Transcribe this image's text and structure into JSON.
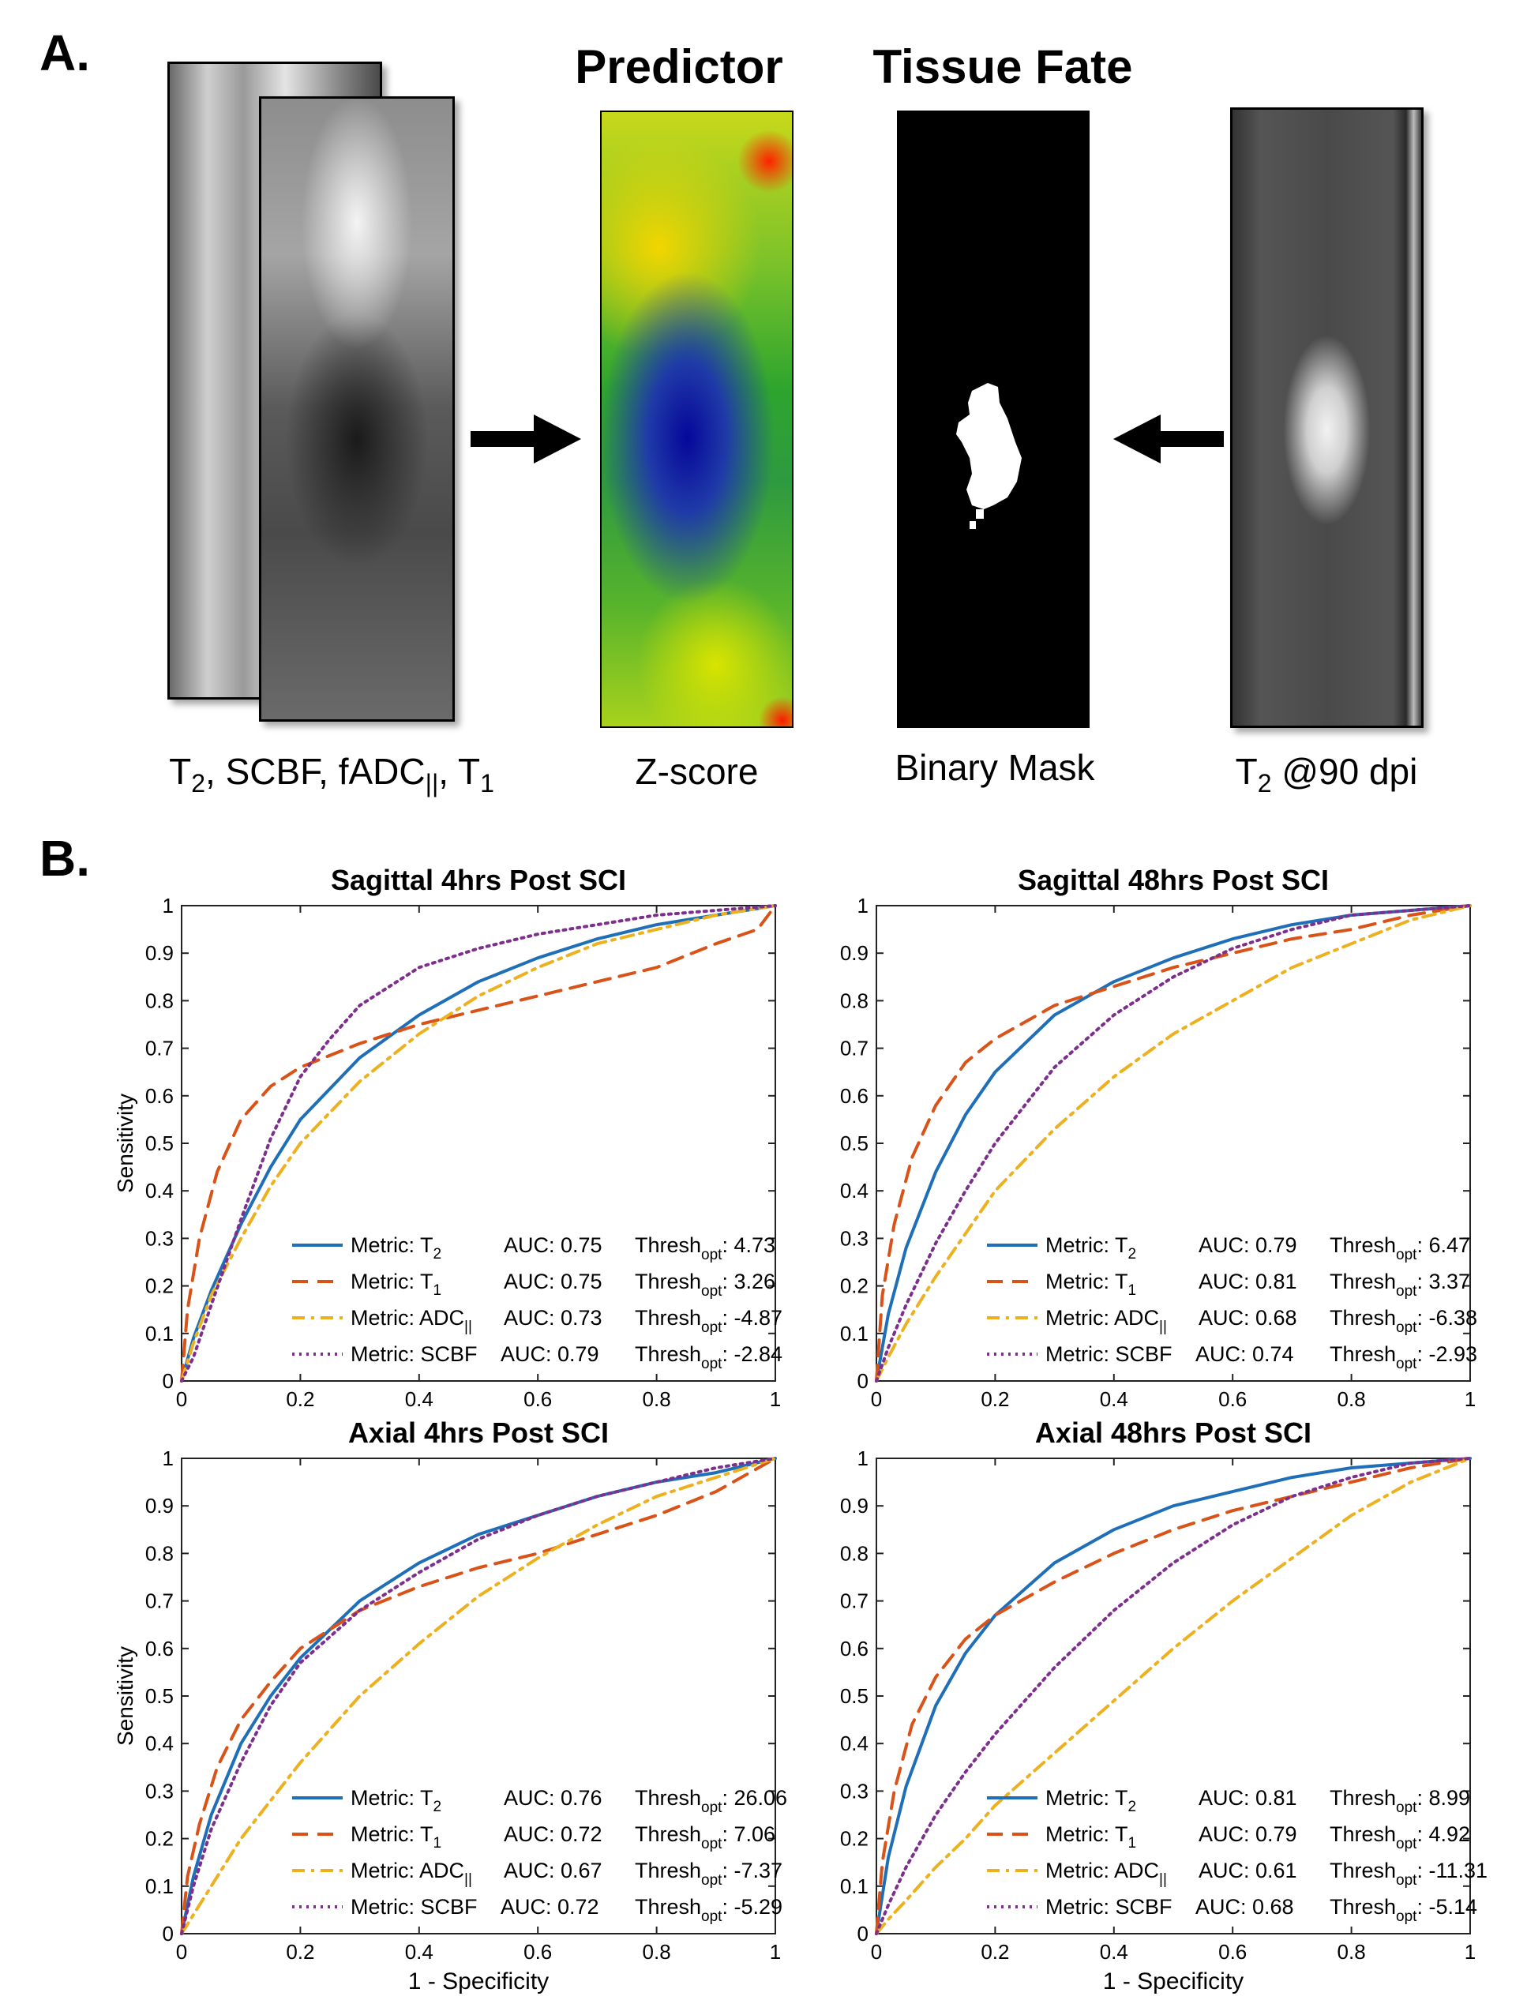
{
  "panel_a": {
    "label": "A.",
    "heading_predictor": "Predictor",
    "heading_tissue_fate": "Tissue Fate",
    "captions": {
      "inputs": {
        "pre": "T",
        "sub": "2",
        "mid": ", SCBF, fADC",
        "sub2": "||",
        "post": ", T",
        "sub3": "1"
      },
      "zscore": "Z-score",
      "mask": "Binary Mask",
      "t2_90": {
        "pre": "T",
        "sub": "2",
        "post": " @90 dpi"
      }
    }
  },
  "panel_b": {
    "label": "B."
  },
  "colors": {
    "T2": "#1f6fb8",
    "T1": "#d95319",
    "ADC": "#edb120",
    "SCBF": "#7e2f8e"
  },
  "chart_data": [
    {
      "type": "line",
      "title": "Sagittal 4hrs Post SCI",
      "xlabel": "",
      "ylabel": "Sensitivity",
      "xlim": [
        0,
        1
      ],
      "ylim": [
        0,
        1
      ],
      "xticks": [
        "0",
        "0.2",
        "0.4",
        "0.6",
        "0.8",
        "1"
      ],
      "yticks": [
        "0",
        "0.1",
        "0.2",
        "0.3",
        "0.4",
        "0.5",
        "0.6",
        "0.7",
        "0.8",
        "0.9",
        "1"
      ],
      "series": [
        {
          "name": "Metric: T2",
          "metric": "T",
          "metric_sub": "2",
          "auc": "AUC: 0.75",
          "thresh": "4.73",
          "style": "solid",
          "x": [
            0,
            0.02,
            0.05,
            0.1,
            0.15,
            0.2,
            0.3,
            0.4,
            0.5,
            0.6,
            0.7,
            0.8,
            0.9,
            1
          ],
          "y": [
            0,
            0.09,
            0.19,
            0.33,
            0.45,
            0.55,
            0.68,
            0.77,
            0.84,
            0.89,
            0.93,
            0.96,
            0.98,
            1
          ]
        },
        {
          "name": "Metric: T1",
          "metric": "T",
          "metric_sub": "1",
          "auc": "AUC: 0.75",
          "thresh": "3.26",
          "style": "dashed",
          "x": [
            0,
            0.01,
            0.03,
            0.06,
            0.1,
            0.15,
            0.2,
            0.3,
            0.4,
            0.5,
            0.6,
            0.7,
            0.8,
            0.9,
            0.97,
            1
          ],
          "y": [
            0,
            0.15,
            0.3,
            0.44,
            0.55,
            0.62,
            0.66,
            0.71,
            0.75,
            0.78,
            0.81,
            0.84,
            0.87,
            0.92,
            0.95,
            1
          ]
        },
        {
          "name": "Metric: ADC||",
          "metric": "ADC",
          "metric_sub": "||",
          "auc": "AUC: 0.73",
          "thresh": "-4.87",
          "style": "dashdot",
          "x": [
            0,
            0.02,
            0.05,
            0.1,
            0.15,
            0.2,
            0.3,
            0.4,
            0.5,
            0.6,
            0.7,
            0.8,
            0.9,
            1
          ],
          "y": [
            0,
            0.08,
            0.18,
            0.3,
            0.41,
            0.5,
            0.63,
            0.73,
            0.81,
            0.87,
            0.92,
            0.95,
            0.98,
            1
          ]
        },
        {
          "name": "Metric: SCBF",
          "metric": "SCBF",
          "metric_sub": "",
          "auc": "AUC: 0.79",
          "thresh": "-2.84",
          "style": "dotted",
          "x": [
            0,
            0.02,
            0.05,
            0.1,
            0.15,
            0.2,
            0.25,
            0.3,
            0.4,
            0.5,
            0.6,
            0.7,
            0.8,
            0.9,
            1
          ],
          "y": [
            0,
            0.05,
            0.16,
            0.34,
            0.51,
            0.64,
            0.72,
            0.79,
            0.87,
            0.91,
            0.94,
            0.96,
            0.98,
            0.99,
            1
          ]
        }
      ]
    },
    {
      "type": "line",
      "title": "Sagittal 48hrs Post SCI",
      "xlabel": "",
      "ylabel": "",
      "xlim": [
        0,
        1
      ],
      "ylim": [
        0,
        1
      ],
      "xticks": [
        "0",
        "0.2",
        "0.4",
        "0.6",
        "0.8",
        "1"
      ],
      "yticks": [
        "0",
        "0.1",
        "0.2",
        "0.3",
        "0.4",
        "0.5",
        "0.6",
        "0.7",
        "0.8",
        "0.9",
        "1"
      ],
      "series": [
        {
          "name": "Metric: T2",
          "metric": "T",
          "metric_sub": "2",
          "auc": "AUC: 0.79",
          "thresh": "6.47",
          "style": "solid",
          "x": [
            0,
            0.02,
            0.05,
            0.1,
            0.15,
            0.2,
            0.3,
            0.4,
            0.5,
            0.6,
            0.7,
            0.8,
            0.9,
            1
          ],
          "y": [
            0,
            0.14,
            0.28,
            0.44,
            0.56,
            0.65,
            0.77,
            0.84,
            0.89,
            0.93,
            0.96,
            0.98,
            0.99,
            1
          ]
        },
        {
          "name": "Metric: T1",
          "metric": "T",
          "metric_sub": "1",
          "auc": "AUC: 0.81",
          "thresh": "3.37",
          "style": "dashed",
          "x": [
            0,
            0.01,
            0.03,
            0.06,
            0.1,
            0.15,
            0.2,
            0.3,
            0.4,
            0.5,
            0.6,
            0.7,
            0.8,
            0.9,
            1
          ],
          "y": [
            0,
            0.18,
            0.33,
            0.47,
            0.58,
            0.67,
            0.72,
            0.79,
            0.83,
            0.87,
            0.9,
            0.93,
            0.95,
            0.98,
            1
          ]
        },
        {
          "name": "Metric: ADC||",
          "metric": "ADC",
          "metric_sub": "||",
          "auc": "AUC: 0.68",
          "thresh": "-6.38",
          "style": "dashdot",
          "x": [
            0,
            0.02,
            0.05,
            0.1,
            0.15,
            0.2,
            0.3,
            0.4,
            0.5,
            0.6,
            0.7,
            0.8,
            0.9,
            1
          ],
          "y": [
            0,
            0.05,
            0.12,
            0.22,
            0.31,
            0.4,
            0.53,
            0.64,
            0.73,
            0.8,
            0.87,
            0.92,
            0.97,
            1
          ]
        },
        {
          "name": "Metric: SCBF",
          "metric": "SCBF",
          "metric_sub": "",
          "auc": "AUC: 0.74",
          "thresh": "-2.93",
          "style": "dotted",
          "x": [
            0,
            0.02,
            0.05,
            0.1,
            0.15,
            0.2,
            0.3,
            0.4,
            0.5,
            0.6,
            0.7,
            0.8,
            0.9,
            1
          ],
          "y": [
            0,
            0.07,
            0.16,
            0.29,
            0.4,
            0.5,
            0.66,
            0.77,
            0.85,
            0.91,
            0.95,
            0.98,
            0.99,
            1
          ]
        }
      ]
    },
    {
      "type": "line",
      "title": "Axial 4hrs Post SCI",
      "xlabel": "1 - Specificity",
      "ylabel": "Sensitivity",
      "xlim": [
        0,
        1
      ],
      "ylim": [
        0,
        1
      ],
      "xticks": [
        "0",
        "0.2",
        "0.4",
        "0.6",
        "0.8",
        "1"
      ],
      "yticks": [
        "0",
        "0.1",
        "0.2",
        "0.3",
        "0.4",
        "0.5",
        "0.6",
        "0.7",
        "0.8",
        "0.9",
        "1"
      ],
      "series": [
        {
          "name": "Metric: T2",
          "metric": "T",
          "metric_sub": "2",
          "auc": "AUC: 0.76",
          "thresh": "26.06",
          "style": "solid",
          "x": [
            0,
            0.02,
            0.05,
            0.1,
            0.15,
            0.2,
            0.3,
            0.4,
            0.5,
            0.6,
            0.7,
            0.8,
            0.9,
            1
          ],
          "y": [
            0,
            0.12,
            0.25,
            0.4,
            0.5,
            0.58,
            0.7,
            0.78,
            0.84,
            0.88,
            0.92,
            0.95,
            0.97,
            1
          ]
        },
        {
          "name": "Metric: T1",
          "metric": "T",
          "metric_sub": "1",
          "auc": "AUC: 0.72",
          "thresh": "7.06",
          "style": "dashed",
          "x": [
            0,
            0.01,
            0.03,
            0.06,
            0.1,
            0.15,
            0.2,
            0.3,
            0.4,
            0.5,
            0.6,
            0.7,
            0.8,
            0.9,
            1
          ],
          "y": [
            0,
            0.12,
            0.23,
            0.35,
            0.45,
            0.53,
            0.6,
            0.68,
            0.73,
            0.77,
            0.8,
            0.84,
            0.88,
            0.93,
            1
          ]
        },
        {
          "name": "Metric: ADC||",
          "metric": "ADC",
          "metric_sub": "||",
          "auc": "AUC: 0.67",
          "thresh": "-7.37",
          "style": "dashdot",
          "x": [
            0,
            0.02,
            0.05,
            0.1,
            0.15,
            0.2,
            0.3,
            0.4,
            0.5,
            0.6,
            0.7,
            0.8,
            0.9,
            1
          ],
          "y": [
            0,
            0.04,
            0.1,
            0.2,
            0.28,
            0.36,
            0.5,
            0.61,
            0.71,
            0.79,
            0.86,
            0.92,
            0.96,
            1
          ]
        },
        {
          "name": "Metric: SCBF",
          "metric": "SCBF",
          "metric_sub": "",
          "auc": "AUC: 0.72",
          "thresh": "-5.29",
          "style": "dotted",
          "x": [
            0,
            0.02,
            0.05,
            0.1,
            0.15,
            0.2,
            0.3,
            0.4,
            0.5,
            0.6,
            0.7,
            0.8,
            0.9,
            1
          ],
          "y": [
            0,
            0.1,
            0.22,
            0.36,
            0.48,
            0.57,
            0.68,
            0.76,
            0.83,
            0.88,
            0.92,
            0.95,
            0.98,
            1
          ]
        }
      ]
    },
    {
      "type": "line",
      "title": "Axial 48hrs Post SCI",
      "xlabel": "1 - Specificity",
      "ylabel": "",
      "xlim": [
        0,
        1
      ],
      "ylim": [
        0,
        1
      ],
      "xticks": [
        "0",
        "0.2",
        "0.4",
        "0.6",
        "0.8",
        "1"
      ],
      "yticks": [
        "0",
        "0.1",
        "0.2",
        "0.3",
        "0.4",
        "0.5",
        "0.6",
        "0.7",
        "0.8",
        "0.9",
        "1"
      ],
      "series": [
        {
          "name": "Metric: T2",
          "metric": "T",
          "metric_sub": "2",
          "auc": "AUC: 0.81",
          "thresh": "8.99",
          "style": "solid",
          "x": [
            0,
            0.02,
            0.05,
            0.1,
            0.15,
            0.2,
            0.3,
            0.4,
            0.5,
            0.6,
            0.7,
            0.8,
            0.9,
            1
          ],
          "y": [
            0,
            0.16,
            0.31,
            0.48,
            0.59,
            0.67,
            0.78,
            0.85,
            0.9,
            0.93,
            0.96,
            0.98,
            0.99,
            1
          ]
        },
        {
          "name": "Metric: T1",
          "metric": "T",
          "metric_sub": "1",
          "auc": "AUC: 0.79",
          "thresh": "4.92",
          "style": "dashed",
          "x": [
            0,
            0.01,
            0.03,
            0.06,
            0.1,
            0.15,
            0.2,
            0.3,
            0.4,
            0.5,
            0.6,
            0.7,
            0.8,
            0.9,
            1
          ],
          "y": [
            0,
            0.15,
            0.3,
            0.44,
            0.54,
            0.62,
            0.67,
            0.74,
            0.8,
            0.85,
            0.89,
            0.92,
            0.95,
            0.98,
            1
          ]
        },
        {
          "name": "Metric: ADC||",
          "metric": "ADC",
          "metric_sub": "||",
          "auc": "AUC: 0.61",
          "thresh": "-11.31",
          "style": "dashdot",
          "x": [
            0,
            0.02,
            0.05,
            0.1,
            0.15,
            0.2,
            0.3,
            0.4,
            0.5,
            0.6,
            0.7,
            0.8,
            0.9,
            1
          ],
          "y": [
            0,
            0.03,
            0.07,
            0.14,
            0.2,
            0.27,
            0.38,
            0.49,
            0.6,
            0.7,
            0.79,
            0.88,
            0.95,
            1
          ]
        },
        {
          "name": "Metric: SCBF",
          "metric": "SCBF",
          "metric_sub": "",
          "auc": "AUC: 0.68",
          "thresh": "-5.14",
          "style": "dotted",
          "x": [
            0,
            0.02,
            0.05,
            0.1,
            0.15,
            0.2,
            0.3,
            0.4,
            0.5,
            0.6,
            0.7,
            0.8,
            0.9,
            1
          ],
          "y": [
            0,
            0.06,
            0.14,
            0.25,
            0.34,
            0.42,
            0.56,
            0.68,
            0.78,
            0.86,
            0.92,
            0.96,
            0.99,
            1
          ]
        }
      ]
    }
  ]
}
